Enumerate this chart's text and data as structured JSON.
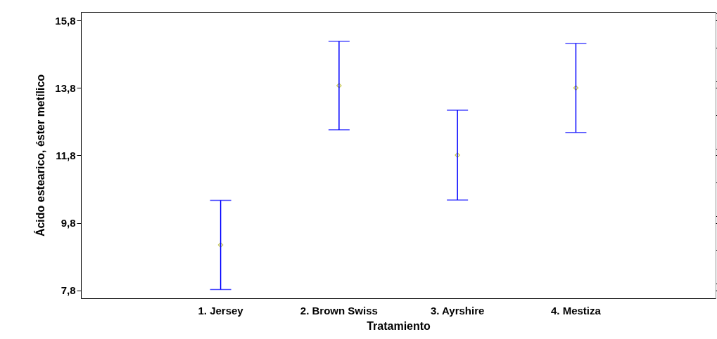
{
  "chart_data": {
    "type": "scatter",
    "xlabel": "Tratamiento",
    "ylabel": "Ácido estearico, éster metílico",
    "categories": [
      "1. Jersey",
      "2. Brown Swiss",
      "3. Ayrshire",
      "4. Mestiza"
    ],
    "series": [
      {
        "color": "#b0b000",
        "values": [
          9.15,
          13.87,
          11.81,
          13.8
        ],
        "errors": [
          1.32,
          1.31,
          1.33,
          1.32
        ]
      }
    ],
    "ylim": [
      7.57,
      16.05
    ],
    "yticks": [
      {
        "value": 7.8,
        "label": "7,8"
      },
      {
        "value": 9.8,
        "label": "9,8"
      },
      {
        "value": 11.8,
        "label": "11,8"
      },
      {
        "value": 13.8,
        "label": "13,8"
      },
      {
        "value": 15.8,
        "label": "15,8"
      }
    ],
    "marker": "diamond",
    "grid": false
  }
}
